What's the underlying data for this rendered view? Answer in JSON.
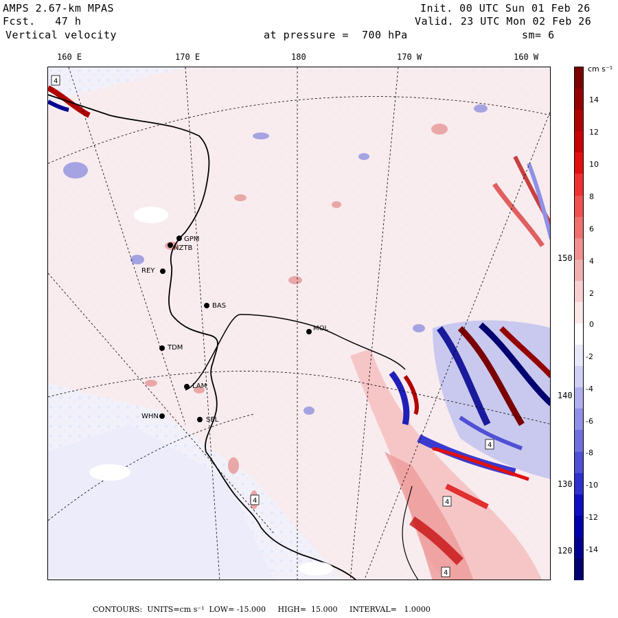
{
  "header": {
    "model": "AMPS 2.67-km MPAS",
    "fcst": "Fcst.   47 h",
    "variable": "Vertical velocity",
    "init": "Init. 00 UTC Sun 01 Feb 26",
    "valid": "Valid. 23 UTC Mon 02 Feb 26",
    "pressure": "at pressure =  700 hPa",
    "smooth": "sm= 6"
  },
  "lon_labels": [
    "160 E",
    "170 E",
    "180",
    "170 W",
    "160 W"
  ],
  "lat_labels": [
    "150 W",
    "140 W",
    "130 W",
    "120 W"
  ],
  "stations": [
    "GPM",
    "NZTB",
    "REY",
    "BAS",
    "MOL",
    "TDM",
    "LAM",
    "WHN",
    "SEL"
  ],
  "colorbar": {
    "units": "cm s⁻¹",
    "ticks": [
      "14",
      "12",
      "10",
      "8",
      "6",
      "4",
      "2",
      "0",
      "-2",
      "-4",
      "-6",
      "-8",
      "-10",
      "-12",
      "-14"
    ],
    "colors": [
      "#7a0000",
      "#940000",
      "#b00000",
      "#c80000",
      "#e01010",
      "#f03030",
      "#f05050",
      "#f07070",
      "#f09090",
      "#f0b0b0",
      "#f8d0d0",
      "#fde8e8",
      "#ffffff",
      "#e8e8fb",
      "#d0d0f5",
      "#b0b0ee",
      "#9090e6",
      "#7070dd",
      "#5050d5",
      "#3030cc",
      "#1010c0",
      "#0000aa",
      "#000090",
      "#000070"
    ]
  },
  "footer": {
    "contours": "CONTOURS:  UNITS=cm s⁻¹  LOW= -15.000     HIGH=  15.000     INTERVAL=   1.0000"
  },
  "box_label": "4"
}
